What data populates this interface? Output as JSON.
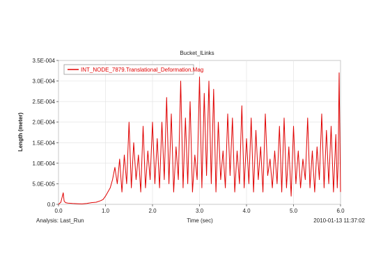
{
  "chart_data": {
    "type": "line",
    "title": "Bucket_lLinks",
    "xlabel": "Time (sec)",
    "ylabel": "Length (meter)",
    "xlim": [
      0.0,
      6.0
    ],
    "ylim": [
      0.0,
      0.00035
    ],
    "x_ticks": [
      "0.0",
      "1.0",
      "2.0",
      "3.0",
      "4.0",
      "5.0",
      "6.0"
    ],
    "y_ticks": [
      "0.0",
      "5.0E-005",
      "1.0E-004",
      "1.5E-004",
      "2.0E-004",
      "2.5E-004",
      "3.0E-004",
      "3.5E-004"
    ],
    "grid": true,
    "legend_position": "top-left",
    "footer_left": "Analysis:  Last_Run",
    "footer_right": "2010-01-13 11:37:02",
    "series": [
      {
        "name": "INT_NODE_7879.Translational_Deformation.Mag",
        "color": "#e00000",
        "x": [
          0.0,
          0.05,
          0.1,
          0.12,
          0.15,
          0.2,
          0.3,
          0.4,
          0.5,
          0.6,
          0.7,
          0.8,
          0.9,
          0.95,
          1.0,
          1.05,
          1.1,
          1.15,
          1.2,
          1.25,
          1.3,
          1.35,
          1.4,
          1.45,
          1.5,
          1.55,
          1.6,
          1.65,
          1.7,
          1.75,
          1.8,
          1.85,
          1.9,
          1.95,
          2.0,
          2.05,
          2.1,
          2.15,
          2.2,
          2.25,
          2.3,
          2.35,
          2.4,
          2.45,
          2.5,
          2.55,
          2.6,
          2.65,
          2.7,
          2.75,
          2.8,
          2.85,
          2.9,
          2.95,
          3.0,
          3.05,
          3.1,
          3.15,
          3.2,
          3.25,
          3.3,
          3.35,
          3.4,
          3.45,
          3.5,
          3.55,
          3.6,
          3.65,
          3.7,
          3.75,
          3.8,
          3.85,
          3.9,
          3.95,
          4.0,
          4.05,
          4.1,
          4.15,
          4.2,
          4.25,
          4.3,
          4.35,
          4.4,
          4.45,
          4.5,
          4.55,
          4.6,
          4.65,
          4.7,
          4.75,
          4.8,
          4.85,
          4.9,
          4.95,
          5.0,
          5.05,
          5.1,
          5.15,
          5.2,
          5.25,
          5.3,
          5.35,
          5.4,
          5.45,
          5.5,
          5.55,
          5.6,
          5.65,
          5.7,
          5.75,
          5.8,
          5.85,
          5.9,
          5.93,
          5.95,
          5.97,
          6.0
        ],
        "y": [
          0.0,
          5e-06,
          2.8e-05,
          8e-06,
          4e-06,
          3e-06,
          2e-06,
          1.5e-06,
          1e-06,
          2e-06,
          4e-06,
          5e-06,
          9e-06,
          1.2e-05,
          2e-05,
          3e-05,
          4e-05,
          6e-05,
          9e-05,
          5e-05,
          0.00011,
          3e-05,
          0.00012,
          5e-05,
          0.0002,
          4e-05,
          0.00015,
          6e-05,
          0.00012,
          3e-05,
          0.00019,
          4e-05,
          0.00013,
          6e-05,
          0.0002,
          5e-05,
          0.00016,
          4e-05,
          0.0002,
          6e-05,
          0.00026,
          5e-05,
          0.00022,
          3e-05,
          0.00014,
          6e-05,
          0.0003,
          4e-05,
          0.00021,
          5e-05,
          0.00025,
          3e-05,
          0.00012,
          6e-05,
          0.00031,
          4e-05,
          0.00027,
          7e-05,
          0.0003,
          5e-05,
          0.00028,
          3e-05,
          0.0002,
          6e-05,
          0.00013,
          4e-05,
          0.00022,
          7e-05,
          0.00021,
          3e-05,
          0.00013,
          5e-05,
          0.00024,
          4e-05,
          0.00016,
          5e-05,
          0.00021,
          3e-05,
          0.00018,
          6e-05,
          0.00014,
          3e-05,
          0.00022,
          7e-05,
          0.00011,
          4e-05,
          0.00013,
          5e-05,
          0.00019,
          3e-05,
          0.00021,
          4e-05,
          0.00014,
          2e-05,
          0.00019,
          5e-05,
          0.00013,
          4e-05,
          0.00011,
          6e-05,
          0.00021,
          4e-05,
          0.00013,
          3e-05,
          0.00014,
          6e-05,
          0.00022,
          4e-05,
          0.00018,
          5e-05,
          0.00019,
          3e-05,
          0.00017,
          4e-05,
          0.0001,
          0.00032,
          3e-05
        ]
      }
    ]
  }
}
